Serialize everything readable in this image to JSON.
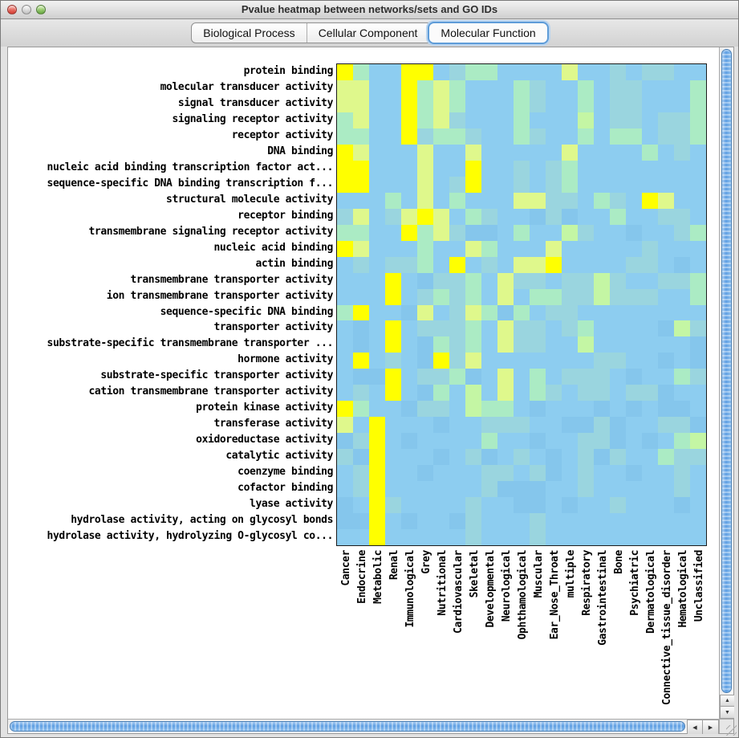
{
  "window": {
    "title": "Pvalue heatmap between networks/sets and GO IDs",
    "traffic_lights": [
      {
        "name": "close",
        "color": "#d9453b",
        "highlight": "#f08a80"
      },
      {
        "name": "minimize",
        "color": "#c6c6c6",
        "highlight": "#efefef"
      },
      {
        "name": "zoom",
        "color": "#6fae49",
        "highlight": "#b9e28d"
      }
    ]
  },
  "tabs": [
    {
      "label": "Biological Process",
      "selected": false
    },
    {
      "label": "Cellular Component",
      "selected": false
    },
    {
      "label": "Molecular Function",
      "selected": true
    }
  ],
  "scrollbars": {
    "up_arrow": "▲",
    "down_arrow": "▼",
    "left_arrow": "◀",
    "right_arrow": "▶"
  },
  "chart_data": {
    "type": "heatmap",
    "title": "Pvalue heatmap between networks/sets and GO IDs",
    "value_semantics": "cell color encodes p-value: yellow = most significant, pale green/aqua intermediate, blue = least significant",
    "rows": [
      "protein binding",
      "molecular transducer activity",
      "signal transducer activity",
      "signaling receptor activity",
      "receptor activity",
      "DNA binding",
      "nucleic acid binding transcription factor act...",
      "sequence-specific DNA binding transcription f...",
      "structural molecule activity",
      "receptor binding",
      "transmembrane signaling receptor activity",
      "nucleic acid binding",
      "actin binding",
      "transmembrane transporter activity",
      "ion transmembrane transporter activity",
      "sequence-specific DNA binding",
      "transporter activity",
      "substrate-specific transmembrane transporter ...",
      "hormone activity",
      "substrate-specific transporter activity",
      "cation transmembrane transporter activity",
      "protein kinase activity",
      "transferase activity",
      "oxidoreductase activity",
      "catalytic activity",
      "coenzyme binding",
      "cofactor binding",
      "lyase activity",
      "hydrolase activity, acting on glycosyl bonds",
      "hydrolase activity, hydrolyzing O-glycosyl co..."
    ],
    "columns": [
      "Cancer",
      "Endocrine",
      "Metabolic",
      "Renal",
      "Immunological",
      "Grey",
      "Nutritional",
      "Cardiovascular",
      "Skeletal",
      "Developmental",
      "Neurological",
      "Ophthamological",
      "Muscular",
      "Ear_Nose_Throat",
      "multiple",
      "Respiratory",
      "Gastrointestinal",
      "Bone",
      "Psychiatric",
      "Dermatological",
      "Connective_tissue_disorder",
      "Hematological",
      "Unclassified"
    ],
    "palette": {
      "Y": "#ffff00",
      "P": "#dff88c",
      "L": "#c4f6a4",
      "G": "#abebc4",
      "A": "#9ad5df",
      "B": "#8dcdf0",
      "D": "#85c6ec"
    },
    "cells": [
      "YGBBYYBAGGBBBBPBBABAABB",
      "PPBBYGPGBBBGABBGBAABBBG",
      "PPBBYGPGBBBGABBGBAABBBG",
      "GPBBYGPABBBGBBBLBAABAAG",
      "GGBBYAGGABBGABBGBGGBAAG",
      "YPBBBPBBPBBBBBPBBBBGBAB",
      "YYBBBPBBYBBABAGBBBBBBBB",
      "YYBBBPBAYBBABAGBBBBBBBB",
      "BBBGBPBGBBBPPAABGABYPBB",
      "APBAPYPBGABBDADBBGBBAAB",
      "GGBBYGPADDBGBBLABBDBBAG",
      "YPBBBGBBPGBBBPBBBBBABBB",
      "BABAAGBYBABPPYBBBBAABDB",
      "BBBYBDAAGBPAABAALABBAAG",
      "BBBYBAGAGBPBGGAALAAABBG",
      "GYBBDPBAPGDGBAABBBBBBBB",
      "BDBYBAAAGBPAABAGBBBBDLA",
      "BDBYBDGAGBPAABBLBBBBBBD",
      "BYBABDYAPBBBBBBBAABBDBD",
      "BDDYBAAGDBPBGBAAABDBBGA",
      "BABYBDGBLBPBGABAABAADBB",
      "YGBBDAABLGGBDBBBDBDBDDB",
      "PBYBBBDBBAAABBDDADBBAAD",
      "DAYBDBBBBGBBDBBAADBDBGL",
      "ADYBBBDBADBABDBADABBGAA",
      "BAYBBDBBBAABADBABBDBBAB",
      "BAYBBBBBBADDDBBABBBBBAB",
      "DBYABBBBABBDDBDBBABBBDB",
      "DDYBDBBDABBBABBBBBBBBBB",
      "BBYBBBBBABBBABBBBBBBBBB"
    ]
  }
}
